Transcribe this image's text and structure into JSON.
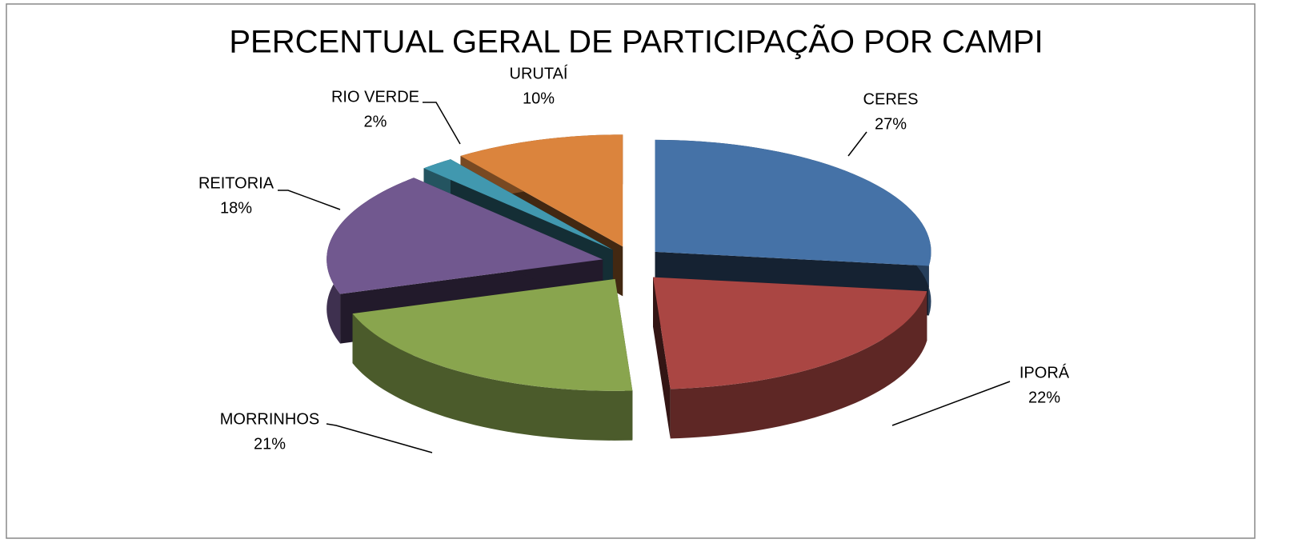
{
  "chart_data": {
    "type": "pie",
    "title": "PERCENTUAL GERAL DE PARTICIPAÇÃO POR CAMPI",
    "categories": [
      "CERES",
      "IPORÁ",
      "MORRINHOS",
      "REITORIA",
      "RIO VERDE",
      "URUTAÍ"
    ],
    "values": [
      27,
      22,
      21,
      18,
      2,
      10
    ],
    "value_labels": [
      "27%",
      "22%",
      "21%",
      "18%",
      "2%",
      "10%"
    ],
    "colors": [
      "#4572a7",
      "#aa4643",
      "#89a54e",
      "#71588f",
      "#4198af",
      "#db843d"
    ]
  }
}
